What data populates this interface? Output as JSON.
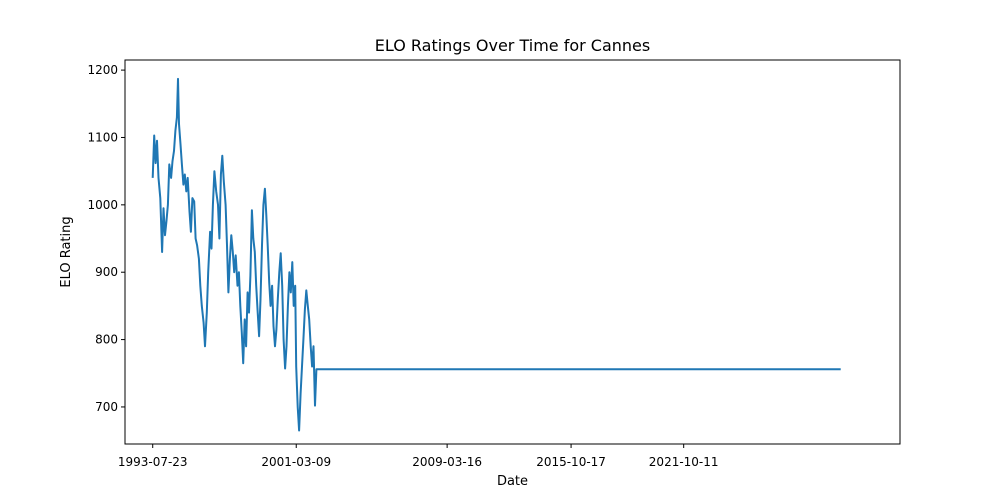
{
  "chart_data": {
    "type": "line",
    "title": "ELO Ratings Over Time for Cannes",
    "xlabel": "Date",
    "ylabel": "ELO Rating",
    "x_ticks": [
      "1993-07-23",
      "2001-03-09",
      "2009-03-16",
      "2015-10-17",
      "2021-10-11"
    ],
    "y_ticks": [
      700,
      800,
      900,
      1000,
      1100,
      1200
    ],
    "xlim": [
      "1992-02-01",
      "2033-04-10"
    ],
    "ylim": [
      645,
      1215
    ],
    "grid": false,
    "series": [
      {
        "color": "#1f77b4",
        "points": [
          [
            "1993-07-23",
            1040
          ],
          [
            "1993-08-20",
            1103
          ],
          [
            "1993-09-17",
            1062
          ],
          [
            "1993-10-15",
            1095
          ],
          [
            "1993-11-12",
            1040
          ],
          [
            "1993-12-17",
            1010
          ],
          [
            "1994-01-21",
            930
          ],
          [
            "1994-02-18",
            995
          ],
          [
            "1994-03-18",
            955
          ],
          [
            "1994-04-15",
            975
          ],
          [
            "1994-05-13",
            1000
          ],
          [
            "1994-06-10",
            1060
          ],
          [
            "1994-07-15",
            1040
          ],
          [
            "1994-08-12",
            1065
          ],
          [
            "1994-09-09",
            1080
          ],
          [
            "1994-10-07",
            1110
          ],
          [
            "1994-11-04",
            1130
          ],
          [
            "1994-11-25",
            1187
          ],
          [
            "1994-12-16",
            1120
          ],
          [
            "1995-01-13",
            1090
          ],
          [
            "1995-02-10",
            1060
          ],
          [
            "1995-03-10",
            1030
          ],
          [
            "1995-04-07",
            1045
          ],
          [
            "1995-05-05",
            1020
          ],
          [
            "1995-06-02",
            1040
          ],
          [
            "1995-07-07",
            990
          ],
          [
            "1995-08-04",
            960
          ],
          [
            "1995-09-01",
            1010
          ],
          [
            "1995-10-06",
            1005
          ],
          [
            "1995-11-03",
            950
          ],
          [
            "1995-12-01",
            940
          ],
          [
            "1996-01-05",
            920
          ],
          [
            "1996-02-02",
            880
          ],
          [
            "1996-03-01",
            850
          ],
          [
            "1996-04-05",
            825
          ],
          [
            "1996-05-03",
            790
          ],
          [
            "1996-06-07",
            840
          ],
          [
            "1996-07-05",
            900
          ],
          [
            "1996-08-09",
            960
          ],
          [
            "1996-09-06",
            935
          ],
          [
            "1996-10-04",
            1000
          ],
          [
            "1996-11-01",
            1050
          ],
          [
            "1996-12-06",
            1020
          ],
          [
            "1997-01-10",
            1000
          ],
          [
            "1997-02-07",
            950
          ],
          [
            "1997-03-07",
            1045
          ],
          [
            "1997-04-04",
            1073
          ],
          [
            "1997-05-02",
            1035
          ],
          [
            "1997-06-06",
            1000
          ],
          [
            "1997-07-04",
            940
          ],
          [
            "1997-08-01",
            870
          ],
          [
            "1997-08-29",
            920
          ],
          [
            "1997-09-26",
            955
          ],
          [
            "1997-10-24",
            930
          ],
          [
            "1997-11-21",
            900
          ],
          [
            "1997-12-19",
            925
          ],
          [
            "1998-01-23",
            880
          ],
          [
            "1998-02-20",
            900
          ],
          [
            "1998-03-20",
            850
          ],
          [
            "1998-04-17",
            810
          ],
          [
            "1998-05-15",
            765
          ],
          [
            "1998-06-12",
            830
          ],
          [
            "1998-07-10",
            790
          ],
          [
            "1998-08-07",
            870
          ],
          [
            "1998-09-04",
            840
          ],
          [
            "1998-10-02",
            895
          ],
          [
            "1998-10-30",
            992
          ],
          [
            "1998-11-27",
            950
          ],
          [
            "1998-12-25",
            930
          ],
          [
            "1999-01-22",
            880
          ],
          [
            "1999-02-19",
            840
          ],
          [
            "1999-03-19",
            805
          ],
          [
            "1999-04-16",
            860
          ],
          [
            "1999-05-14",
            940
          ],
          [
            "1999-06-11",
            1000
          ],
          [
            "1999-07-09",
            1024
          ],
          [
            "1999-08-06",
            985
          ],
          [
            "1999-09-03",
            940
          ],
          [
            "1999-10-01",
            885
          ],
          [
            "1999-10-29",
            850
          ],
          [
            "1999-11-26",
            880
          ],
          [
            "1999-12-24",
            820
          ],
          [
            "2000-01-21",
            790
          ],
          [
            "2000-02-18",
            815
          ],
          [
            "2000-03-17",
            860
          ],
          [
            "2000-04-14",
            900
          ],
          [
            "2000-05-12",
            928
          ],
          [
            "2000-06-09",
            880
          ],
          [
            "2000-07-07",
            800
          ],
          [
            "2000-08-04",
            757
          ],
          [
            "2000-09-01",
            790
          ],
          [
            "2000-09-29",
            850
          ],
          [
            "2000-10-27",
            900
          ],
          [
            "2000-11-24",
            870
          ],
          [
            "2000-12-22",
            915
          ],
          [
            "2001-01-19",
            850
          ],
          [
            "2001-02-16",
            880
          ],
          [
            "2001-03-09",
            760
          ],
          [
            "2001-04-06",
            700
          ],
          [
            "2001-05-04",
            665
          ],
          [
            "2001-06-01",
            720
          ],
          [
            "2001-06-29",
            760
          ],
          [
            "2001-07-27",
            800
          ],
          [
            "2001-08-24",
            845
          ],
          [
            "2001-09-21",
            873
          ],
          [
            "2001-10-19",
            850
          ],
          [
            "2001-11-16",
            830
          ],
          [
            "2001-12-14",
            790
          ],
          [
            "2002-01-11",
            760
          ],
          [
            "2002-02-08",
            790
          ],
          [
            "2002-03-08",
            702
          ],
          [
            "2002-04-05",
            756
          ],
          [
            "2030-02-14",
            756
          ]
        ]
      }
    ]
  }
}
